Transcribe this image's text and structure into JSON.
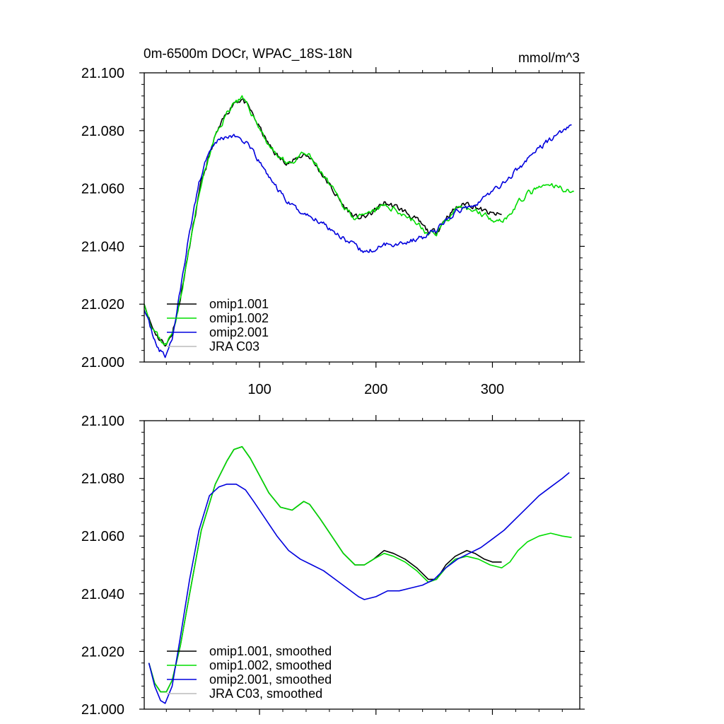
{
  "figure": {
    "title_left": "0m-6500m DOCr, WPAC_18S-18N",
    "title_right": "mmol/m^3"
  },
  "chart_data": [
    {
      "type": "line",
      "title": "0m-6500m DOCr, WPAC_18S-18N",
      "units": "mmol/m^3",
      "xlim": [
        1,
        375
      ],
      "ylim": [
        21.0,
        21.1
      ],
      "x_ticks": [
        100,
        200,
        300
      ],
      "x_tick_labels": [
        "100",
        "200",
        "300"
      ],
      "y_ticks": [
        21.0,
        21.02,
        21.04,
        21.06,
        21.08,
        21.1
      ],
      "y_tick_labels": [
        "21.000",
        "21.020",
        "21.040",
        "21.060",
        "21.080",
        "21.100"
      ],
      "legend_placement": "bottom-left",
      "series": [
        {
          "name": "omip1.001",
          "color": "#000000",
          "noise": 0.0012,
          "seed": 11,
          "points": [
            [
              1,
              21.02
            ],
            [
              8,
              21.012
            ],
            [
              14,
              21.008
            ],
            [
              20,
              21.006
            ],
            [
              25,
              21.01
            ],
            [
              32,
              21.022
            ],
            [
              40,
              21.04
            ],
            [
              50,
              21.062
            ],
            [
              62,
              21.078
            ],
            [
              72,
              21.086
            ],
            [
              78,
              21.09
            ],
            [
              85,
              21.091
            ],
            [
              92,
              21.087
            ],
            [
              100,
              21.081
            ],
            [
              108,
              21.075
            ],
            [
              118,
              21.07
            ],
            [
              128,
              21.069
            ],
            [
              138,
              21.072
            ],
            [
              143,
              21.071
            ],
            [
              152,
              21.066
            ],
            [
              162,
              21.06
            ],
            [
              172,
              21.054
            ],
            [
              182,
              21.05
            ],
            [
              190,
              21.05
            ],
            [
              198,
              21.052
            ],
            [
              207,
              21.055
            ],
            [
              215,
              21.054
            ],
            [
              225,
              21.052
            ],
            [
              235,
              21.049
            ],
            [
              245,
              21.045
            ],
            [
              252,
              21.045
            ],
            [
              260,
              21.05
            ],
            [
              268,
              21.053
            ],
            [
              278,
              21.055
            ],
            [
              285,
              21.054
            ],
            [
              293,
              21.052
            ],
            [
              300,
              21.051
            ],
            [
              308,
              21.051
            ]
          ]
        },
        {
          "name": "omip1.002",
          "color": "#00dd00",
          "noise": 0.0012,
          "seed": 23,
          "points": [
            [
              1,
              21.02
            ],
            [
              8,
              21.012
            ],
            [
              14,
              21.008
            ],
            [
              20,
              21.006
            ],
            [
              25,
              21.01
            ],
            [
              32,
              21.022
            ],
            [
              40,
              21.04
            ],
            [
              50,
              21.062
            ],
            [
              62,
              21.078
            ],
            [
              72,
              21.086
            ],
            [
              78,
              21.09
            ],
            [
              85,
              21.091
            ],
            [
              92,
              21.087
            ],
            [
              100,
              21.081
            ],
            [
              108,
              21.075
            ],
            [
              118,
              21.07
            ],
            [
              128,
              21.069
            ],
            [
              138,
              21.072
            ],
            [
              143,
              21.071
            ],
            [
              152,
              21.066
            ],
            [
              162,
              21.06
            ],
            [
              172,
              21.054
            ],
            [
              182,
              21.05
            ],
            [
              190,
              21.05
            ],
            [
              198,
              21.052
            ],
            [
              207,
              21.054
            ],
            [
              215,
              21.053
            ],
            [
              225,
              21.051
            ],
            [
              235,
              21.048
            ],
            [
              245,
              21.044
            ],
            [
              252,
              21.045
            ],
            [
              260,
              21.049
            ],
            [
              268,
              21.052
            ],
            [
              278,
              21.053
            ],
            [
              288,
              21.052
            ],
            [
              298,
              21.05
            ],
            [
              308,
              21.049
            ],
            [
              315,
              21.051
            ],
            [
              322,
              21.055
            ],
            [
              330,
              21.058
            ],
            [
              340,
              21.06
            ],
            [
              350,
              21.061
            ],
            [
              360,
              21.06
            ],
            [
              370,
              21.059
            ]
          ]
        },
        {
          "name": "omip2.001",
          "color": "#0000dd",
          "noise": 0.0011,
          "seed": 37,
          "points": [
            [
              1,
              21.018
            ],
            [
              8,
              21.01
            ],
            [
              14,
              21.004
            ],
            [
              19,
              21.002
            ],
            [
              25,
              21.008
            ],
            [
              32,
              21.025
            ],
            [
              40,
              21.045
            ],
            [
              48,
              21.062
            ],
            [
              57,
              21.074
            ],
            [
              65,
              21.077
            ],
            [
              72,
              21.078
            ],
            [
              80,
              21.078
            ],
            [
              88,
              21.076
            ],
            [
              95,
              21.072
            ],
            [
              105,
              21.066
            ],
            [
              115,
              21.06
            ],
            [
              125,
              21.055
            ],
            [
              135,
              21.052
            ],
            [
              145,
              21.05
            ],
            [
              155,
              21.048
            ],
            [
              165,
              21.045
            ],
            [
              175,
              21.042
            ],
            [
              185,
              21.039
            ],
            [
              190,
              21.038
            ],
            [
              200,
              21.039
            ],
            [
              210,
              21.041
            ],
            [
              220,
              21.041
            ],
            [
              230,
              21.042
            ],
            [
              240,
              21.043
            ],
            [
              250,
              21.045
            ],
            [
              260,
              21.049
            ],
            [
              270,
              21.052
            ],
            [
              280,
              21.054
            ],
            [
              290,
              21.056
            ],
            [
              300,
              21.059
            ],
            [
              310,
              21.062
            ],
            [
              320,
              21.066
            ],
            [
              330,
              21.07
            ],
            [
              340,
              21.074
            ],
            [
              350,
              21.077
            ],
            [
              360,
              21.08
            ],
            [
              368,
              21.082
            ]
          ]
        },
        {
          "name": "JRA C03",
          "color": "#bbbbbb",
          "noise": 0,
          "seed": 0,
          "points": []
        }
      ]
    },
    {
      "type": "line",
      "xlim": [
        1,
        375
      ],
      "ylim": [
        21.0,
        21.1
      ],
      "x_ticks": [
        100,
        200,
        300
      ],
      "x_tick_labels": [],
      "y_ticks": [
        21.0,
        21.02,
        21.04,
        21.06,
        21.08,
        21.1
      ],
      "y_tick_labels": [
        "21.000",
        "21.020",
        "21.040",
        "21.060",
        "21.080",
        "21.100"
      ],
      "legend_placement": "bottom-left",
      "series": [
        {
          "name": "omip1.001, smoothed",
          "color": "#000000",
          "noise": 0,
          "seed": 0,
          "points": [
            [
              5,
              21.016
            ],
            [
              10,
              21.009
            ],
            [
              15,
              21.006
            ],
            [
              20,
              21.006
            ],
            [
              25,
              21.01
            ],
            [
              32,
              21.022
            ],
            [
              40,
              21.04
            ],
            [
              50,
              21.062
            ],
            [
              62,
              21.078
            ],
            [
              72,
              21.086
            ],
            [
              78,
              21.09
            ],
            [
              85,
              21.091
            ],
            [
              92,
              21.087
            ],
            [
              100,
              21.081
            ],
            [
              108,
              21.075
            ],
            [
              118,
              21.07
            ],
            [
              128,
              21.069
            ],
            [
              138,
              21.072
            ],
            [
              143,
              21.071
            ],
            [
              152,
              21.066
            ],
            [
              162,
              21.06
            ],
            [
              172,
              21.054
            ],
            [
              182,
              21.05
            ],
            [
              190,
              21.05
            ],
            [
              198,
              21.052
            ],
            [
              207,
              21.055
            ],
            [
              215,
              21.054
            ],
            [
              225,
              21.052
            ],
            [
              235,
              21.049
            ],
            [
              245,
              21.045
            ],
            [
              252,
              21.045
            ],
            [
              260,
              21.05
            ],
            [
              268,
              21.053
            ],
            [
              278,
              21.055
            ],
            [
              285,
              21.054
            ],
            [
              293,
              21.052
            ],
            [
              300,
              21.051
            ],
            [
              308,
              21.051
            ]
          ]
        },
        {
          "name": "omip1.002, smoothed",
          "color": "#00dd00",
          "noise": 0,
          "seed": 0,
          "points": [
            [
              5,
              21.016
            ],
            [
              10,
              21.009
            ],
            [
              15,
              21.006
            ],
            [
              20,
              21.006
            ],
            [
              25,
              21.01
            ],
            [
              32,
              21.022
            ],
            [
              40,
              21.04
            ],
            [
              50,
              21.062
            ],
            [
              62,
              21.078
            ],
            [
              72,
              21.086
            ],
            [
              78,
              21.09
            ],
            [
              85,
              21.091
            ],
            [
              92,
              21.087
            ],
            [
              100,
              21.081
            ],
            [
              108,
              21.075
            ],
            [
              118,
              21.07
            ],
            [
              128,
              21.069
            ],
            [
              138,
              21.072
            ],
            [
              143,
              21.071
            ],
            [
              152,
              21.066
            ],
            [
              162,
              21.06
            ],
            [
              172,
              21.054
            ],
            [
              182,
              21.05
            ],
            [
              190,
              21.05
            ],
            [
              198,
              21.052
            ],
            [
              207,
              21.054
            ],
            [
              215,
              21.053
            ],
            [
              225,
              21.051
            ],
            [
              235,
              21.048
            ],
            [
              245,
              21.044
            ],
            [
              252,
              21.045
            ],
            [
              260,
              21.049
            ],
            [
              268,
              21.052
            ],
            [
              278,
              21.053
            ],
            [
              288,
              21.052
            ],
            [
              298,
              21.05
            ],
            [
              308,
              21.049
            ],
            [
              315,
              21.051
            ],
            [
              322,
              21.055
            ],
            [
              330,
              21.058
            ],
            [
              340,
              21.06
            ],
            [
              350,
              21.061
            ],
            [
              360,
              21.06
            ],
            [
              368,
              21.0595
            ]
          ]
        },
        {
          "name": "omip2.001, smoothed",
          "color": "#0000dd",
          "noise": 0,
          "seed": 0,
          "points": [
            [
              5,
              21.016
            ],
            [
              10,
              21.008
            ],
            [
              15,
              21.003
            ],
            [
              19,
              21.002
            ],
            [
              25,
              21.008
            ],
            [
              32,
              21.025
            ],
            [
              40,
              21.045
            ],
            [
              48,
              21.062
            ],
            [
              57,
              21.074
            ],
            [
              65,
              21.077
            ],
            [
              72,
              21.078
            ],
            [
              80,
              21.078
            ],
            [
              88,
              21.076
            ],
            [
              95,
              21.072
            ],
            [
              105,
              21.066
            ],
            [
              115,
              21.06
            ],
            [
              125,
              21.055
            ],
            [
              135,
              21.052
            ],
            [
              145,
              21.05
            ],
            [
              155,
              21.048
            ],
            [
              165,
              21.045
            ],
            [
              175,
              21.042
            ],
            [
              185,
              21.039
            ],
            [
              190,
              21.038
            ],
            [
              200,
              21.039
            ],
            [
              210,
              21.041
            ],
            [
              220,
              21.041
            ],
            [
              230,
              21.042
            ],
            [
              240,
              21.043
            ],
            [
              250,
              21.045
            ],
            [
              260,
              21.049
            ],
            [
              270,
              21.052
            ],
            [
              280,
              21.054
            ],
            [
              290,
              21.056
            ],
            [
              300,
              21.059
            ],
            [
              310,
              21.062
            ],
            [
              320,
              21.066
            ],
            [
              330,
              21.07
            ],
            [
              340,
              21.074
            ],
            [
              350,
              21.077
            ],
            [
              360,
              21.08
            ],
            [
              366,
              21.082
            ]
          ]
        },
        {
          "name": "JRA C03, smoothed",
          "color": "#bbbbbb",
          "noise": 0,
          "seed": 0,
          "points": []
        }
      ]
    }
  ]
}
